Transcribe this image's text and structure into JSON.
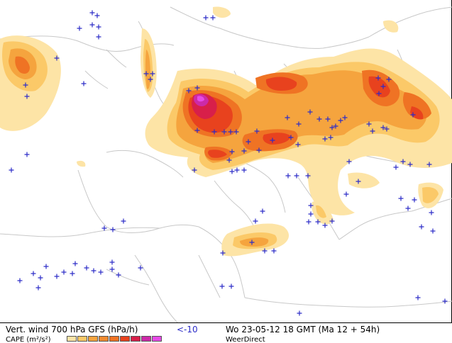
{
  "footer": {
    "title": "Vert. wind 700 hPa GFS (hPa/h)",
    "threshold": "<-10",
    "time": "Wo 23-05-12 18 GMT (Ma 12 + 54h)",
    "second_line": "CAPE (m²/s²)",
    "brand": "WeerDirect"
  },
  "colors": {
    "lightest": "#fde4a6",
    "light": "#fbc968",
    "medium": "#f5a43e",
    "strong": "#ef7324",
    "stronger": "#e8421e",
    "intense": "#d81f4a",
    "extreme": "#cc2aa8",
    "top": "#e64ae6",
    "marker": "#2c2cc8",
    "coast": "#c8c8c8"
  },
  "legend_colors": [
    "#fde4a6",
    "#fbc968",
    "#f5a43e",
    "#f08a30",
    "#ef7324",
    "#e8421e",
    "#d81f4a",
    "#cc2aa8",
    "#e64ae6"
  ],
  "icons": {
    "marker": "plus-marker-icon"
  }
}
